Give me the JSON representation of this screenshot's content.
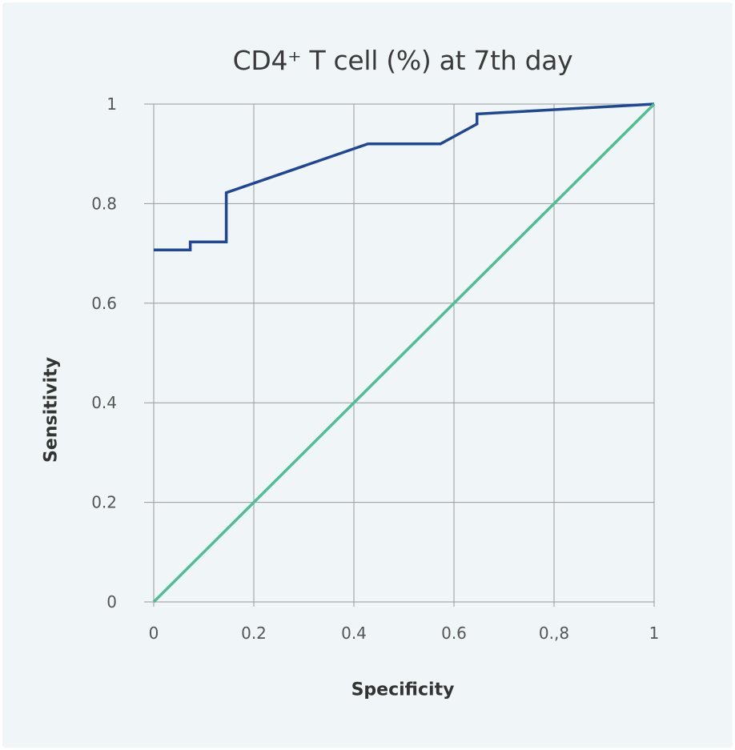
{
  "chart_data": {
    "type": "line",
    "title": "CD4⁺ T cell (%) at 7th day",
    "xlabel": "Specificity",
    "ylabel": "Sensitivity",
    "xlim": [
      0,
      1
    ],
    "ylim": [
      0,
      1
    ],
    "x_ticks": [
      {
        "value": 0,
        "label": "0"
      },
      {
        "value": 0.2,
        "label": "0.2"
      },
      {
        "value": 0.4,
        "label": "0.4"
      },
      {
        "value": 0.6,
        "label": "0.6"
      },
      {
        "value": 0.8,
        "label": "0.,8"
      },
      {
        "value": 1,
        "label": "1"
      }
    ],
    "y_ticks": [
      {
        "value": 0,
        "label": "0"
      },
      {
        "value": 0.2,
        "label": "0.2"
      },
      {
        "value": 0.4,
        "label": "0.4"
      },
      {
        "value": 0.6,
        "label": "0.6"
      },
      {
        "value": 0.8,
        "label": "0.8"
      },
      {
        "value": 1,
        "label": "1"
      }
    ],
    "grid": true,
    "series": [
      {
        "color": "#1f4795",
        "x": [
          0,
          0.073,
          0.073,
          0.145,
          0.145,
          0.428,
          0.573,
          0.646,
          0.646,
          1
        ],
        "y": [
          0.707,
          0.707,
          0.723,
          0.723,
          0.822,
          0.92,
          0.92,
          0.96,
          0.98,
          1
        ]
      },
      {
        "color": "#4fbf93",
        "x": [
          0,
          1
        ],
        "y": [
          0,
          1
        ]
      }
    ]
  }
}
